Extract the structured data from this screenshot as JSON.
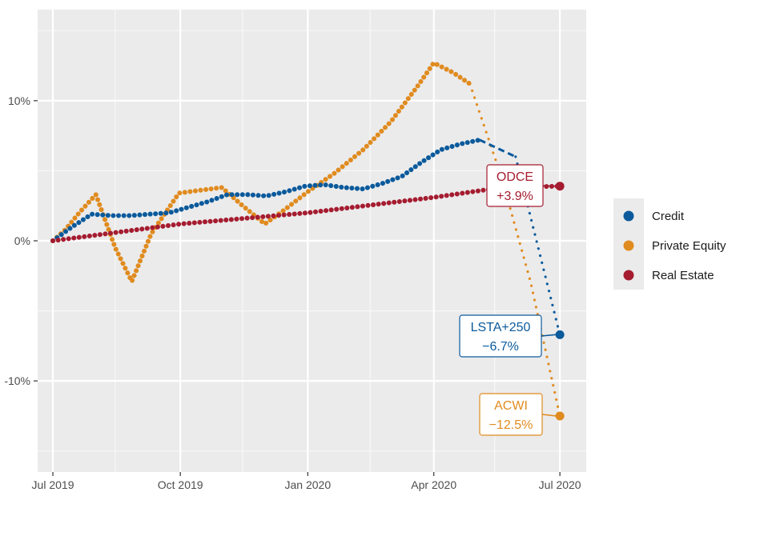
{
  "chart_data": {
    "type": "line",
    "x_axis": {
      "ticks": [
        "2019-07-01",
        "2019-10-01",
        "2020-01-01",
        "2020-04-01",
        "2020-07-01"
      ],
      "tick_labels": [
        "Jul 2019",
        "Oct 2019",
        "Jan 2020",
        "Apr 2020",
        "Jul 2020"
      ],
      "minor_ticks": [
        "2019-08-15",
        "2019-11-15",
        "2020-02-15",
        "2020-05-15"
      ],
      "range": [
        "2019-06-20",
        "2020-07-20"
      ]
    },
    "y_axis": {
      "ticks": [
        10,
        0,
        -10
      ],
      "tick_labels": [
        "10%",
        "0%",
        "-10%"
      ],
      "minor_ticks": [
        15,
        5,
        -5,
        -15
      ],
      "range": [
        -16.5,
        16.5
      ],
      "unit": "%"
    },
    "grid": true,
    "legend_position": "right",
    "series": [
      {
        "name": "Credit",
        "color": "#0a5a9c",
        "points": [
          [
            "2019-07-01",
            0.0
          ],
          [
            "2019-07-15",
            1.0
          ],
          [
            "2019-07-29",
            1.9
          ],
          [
            "2019-08-12",
            1.8
          ],
          [
            "2019-08-26",
            1.8
          ],
          [
            "2019-09-09",
            1.9
          ],
          [
            "2019-09-23",
            2.0
          ],
          [
            "2019-10-07",
            2.4
          ],
          [
            "2019-10-21",
            2.8
          ],
          [
            "2019-11-04",
            3.3
          ],
          [
            "2019-11-18",
            3.3
          ],
          [
            "2019-12-02",
            3.2
          ],
          [
            "2019-12-16",
            3.5
          ],
          [
            "2019-12-30",
            3.9
          ],
          [
            "2020-01-13",
            4.0
          ],
          [
            "2020-01-27",
            3.8
          ],
          [
            "2020-02-10",
            3.7
          ],
          [
            "2020-02-24",
            4.1
          ],
          [
            "2020-03-09",
            4.6
          ],
          [
            "2020-03-23",
            5.6
          ],
          [
            "2020-04-06",
            6.5
          ],
          [
            "2020-04-20",
            6.9
          ],
          [
            "2020-05-04",
            7.2
          ]
        ],
        "dashed_projection": [
          [
            "2020-05-04",
            7.2
          ],
          [
            "2020-05-30",
            6.0
          ]
        ],
        "dotted_projection": [
          [
            "2020-05-30",
            6.0
          ],
          [
            "2020-07-01",
            -6.7
          ]
        ],
        "end_value": -6.7
      },
      {
        "name": "Private Equity",
        "color": "#e08b1f",
        "points": [
          [
            "2019-07-01",
            0.0
          ],
          [
            "2019-07-10",
            0.8
          ],
          [
            "2019-07-20",
            2.0
          ],
          [
            "2019-08-01",
            3.3
          ],
          [
            "2019-08-15",
            -0.5
          ],
          [
            "2019-08-27",
            -2.9
          ],
          [
            "2019-09-10",
            0.5
          ],
          [
            "2019-09-30",
            3.4
          ],
          [
            "2019-10-15",
            3.6
          ],
          [
            "2019-10-31",
            3.8
          ],
          [
            "2019-11-15",
            2.5
          ],
          [
            "2019-12-01",
            1.2
          ],
          [
            "2019-12-15",
            2.2
          ],
          [
            "2020-01-01",
            3.5
          ],
          [
            "2020-01-20",
            4.8
          ],
          [
            "2020-02-10",
            6.5
          ],
          [
            "2020-03-01",
            8.5
          ],
          [
            "2020-03-20",
            11.0
          ],
          [
            "2020-04-01",
            12.7
          ],
          [
            "2020-04-15",
            12.0
          ],
          [
            "2020-04-27",
            11.2
          ]
        ],
        "dotted_projection": [
          [
            "2020-04-27",
            11.2
          ],
          [
            "2020-05-20",
            4.5
          ],
          [
            "2020-06-10",
            -3.0
          ],
          [
            "2020-07-01",
            -12.5
          ]
        ],
        "end_value": -12.5
      },
      {
        "name": "Real Estate",
        "color": "#a51c30",
        "points": [
          [
            "2019-07-01",
            0.0
          ],
          [
            "2019-10-01",
            1.2
          ],
          [
            "2020-01-01",
            2.0
          ],
          [
            "2020-04-01",
            3.1
          ],
          [
            "2020-05-20",
            3.8
          ],
          [
            "2020-07-01",
            3.9
          ]
        ],
        "end_value": 3.9
      }
    ],
    "annotations": [
      {
        "series": "Real Estate",
        "line1": "ODCE",
        "line2": "+3.9%",
        "color": "#a51c30"
      },
      {
        "series": "Credit",
        "line1": "LSTA+250",
        "line2": "−6.7%",
        "color": "#0a5a9c"
      },
      {
        "series": "Private Equity",
        "line1": "ACWI",
        "line2": "−12.5%",
        "color": "#e08b1f"
      }
    ]
  }
}
